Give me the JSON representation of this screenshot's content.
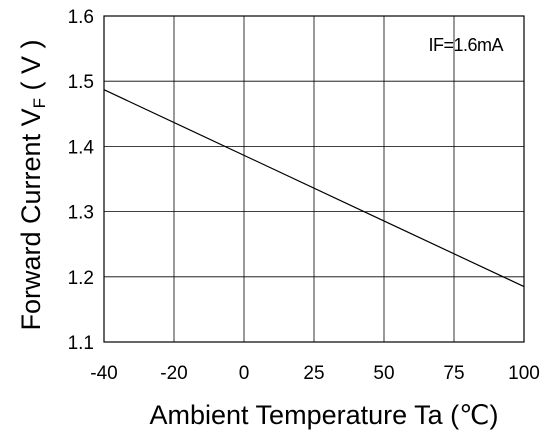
{
  "chart_data": {
    "type": "line",
    "xlabel": "Ambient Temperature Ta (℃)",
    "ylabel_main": "Forward Current V",
    "ylabel_sub": "F",
    "ylabel_unit": " ( V )",
    "annotation": "IF=1.6mA",
    "x_ticks": [
      "-40",
      "-20",
      "0",
      "25",
      "50",
      "75",
      "100"
    ],
    "y_ticks": [
      "1.1",
      "1.2",
      "1.3",
      "1.4",
      "1.5",
      "1.6"
    ],
    "xlim": [
      -40,
      100
    ],
    "ylim": [
      1.1,
      1.6
    ],
    "grid": true,
    "series": [
      {
        "x": [
          -40,
          100
        ],
        "y": [
          1.487,
          1.185
        ]
      }
    ]
  }
}
